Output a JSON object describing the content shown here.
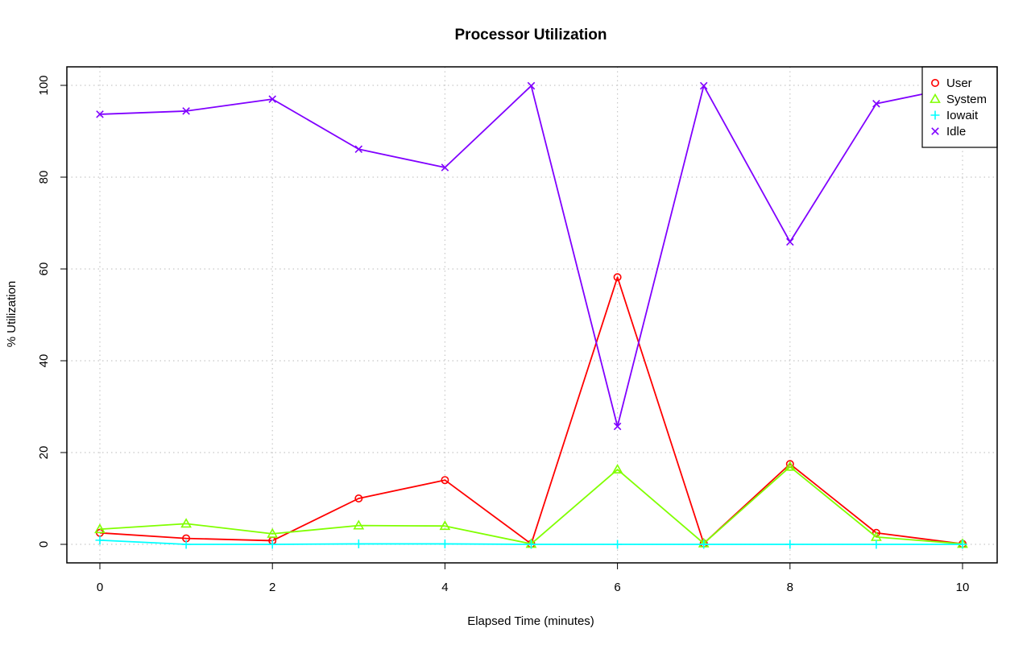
{
  "chart_data": {
    "type": "line",
    "title": "Processor Utilization",
    "xlabel": "Elapsed Time (minutes)",
    "ylabel": "% Utilization",
    "x": [
      0,
      1,
      2,
      3,
      4,
      5,
      6,
      7,
      8,
      9,
      10
    ],
    "xlim": [
      0,
      10
    ],
    "ylim": [
      0,
      100
    ],
    "xticks": [
      0,
      2,
      4,
      6,
      8,
      10
    ],
    "yticks": [
      0,
      20,
      40,
      60,
      80,
      100
    ],
    "grid": true,
    "legend_position": "top-right",
    "series": [
      {
        "name": "User",
        "color": "#ff0000",
        "marker": "circle",
        "values": [
          2.5,
          1.3,
          0.8,
          10.0,
          14.0,
          0.1,
          58.2,
          0.2,
          17.5,
          2.5,
          0.1
        ]
      },
      {
        "name": "System",
        "color": "#80ff00",
        "marker": "triangle",
        "values": [
          3.3,
          4.5,
          2.3,
          4.1,
          4.0,
          0.1,
          16.3,
          0.2,
          16.9,
          1.6,
          0.1
        ]
      },
      {
        "name": "Iowait",
        "color": "#00ffff",
        "marker": "plus",
        "values": [
          0.9,
          0.0,
          0.0,
          0.1,
          0.1,
          0.0,
          0.0,
          0.0,
          0.0,
          0.0,
          0.0
        ]
      },
      {
        "name": "Idle",
        "color": "#8000ff",
        "marker": "cross",
        "values": [
          93.7,
          94.4,
          97.0,
          86.1,
          82.1,
          99.9,
          25.7,
          99.9,
          65.9,
          96.0,
          99.9
        ]
      }
    ]
  }
}
